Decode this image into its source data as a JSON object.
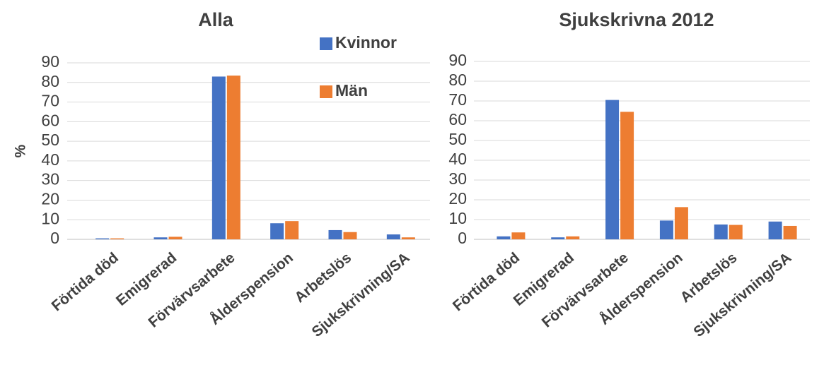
{
  "chart_data": [
    {
      "type": "bar",
      "title": "Alla",
      "y_label": "%",
      "categories": [
        "Förtida död",
        "Emigrerad",
        "Förvärvsarbete",
        "Ålderspension",
        "Arbetslös",
        "Sjukskrivning/SA"
      ],
      "series": [
        {
          "name": "Kvinnor",
          "color": "#4472c4",
          "values": [
            0.5,
            1,
            83,
            8.2,
            4.7,
            2.5
          ]
        },
        {
          "name": "Män",
          "color": "#ed7d31",
          "values": [
            0.5,
            1.3,
            83.5,
            9.3,
            3.7,
            1
          ]
        }
      ],
      "ylim": [
        0,
        90
      ],
      "yticks": [
        0,
        10,
        20,
        30,
        40,
        50,
        60,
        70,
        80,
        90
      ],
      "grid": true,
      "legend": "top-right"
    },
    {
      "type": "bar",
      "title": "Sjukskrivna 2012",
      "categories": [
        "Förtida död",
        "Emigrerad",
        "Förvärvsarbete",
        "Ålderspension",
        "Arbetslös",
        "Sjukskrivning/SA"
      ],
      "series": [
        {
          "name": "Kvinnor",
          "color": "#4472c4",
          "values": [
            1.5,
            1,
            70.5,
            9.5,
            7.5,
            9
          ]
        },
        {
          "name": "Män",
          "color": "#ed7d31",
          "values": [
            3.5,
            1.5,
            64.5,
            16.3,
            7.3,
            6.8
          ]
        }
      ],
      "ylim": [
        0,
        90
      ],
      "yticks": [
        0,
        10,
        20,
        30,
        40,
        50,
        60,
        70,
        80,
        90
      ],
      "grid": true
    }
  ]
}
